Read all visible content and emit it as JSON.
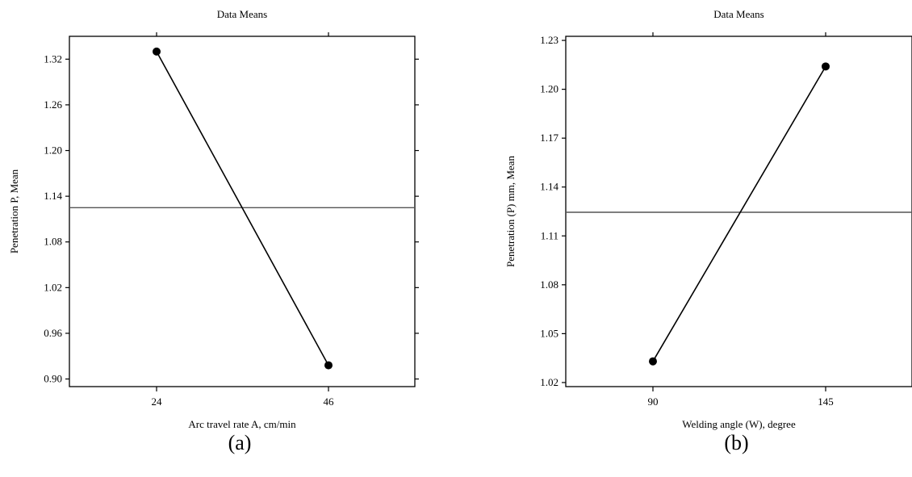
{
  "chart_data": [
    {
      "type": "line",
      "title": "Data Means",
      "xlabel": "Arc travel rate A, cm/min",
      "ylabel": "Penetration P, Mean",
      "caption": "(a)",
      "x": [
        "24",
        "46"
      ],
      "values": [
        1.33,
        0.918
      ],
      "mean_line": 1.125,
      "ylim": [
        0.89,
        1.35
      ],
      "yticks": [
        "0.90",
        "0.96",
        "1.02",
        "1.08",
        "1.14",
        "1.20",
        "1.26",
        "1.32"
      ],
      "grid": false
    },
    {
      "type": "line",
      "title": "Data Means",
      "xlabel": "Welding angle (W), degree",
      "ylabel": "Penetration (P) mm, Mean",
      "caption": "(b)",
      "x": [
        "90",
        "145"
      ],
      "values": [
        1.033,
        1.214
      ],
      "mean_line": 1.1245,
      "ylim": [
        1.0175,
        1.2325
      ],
      "yticks": [
        "1.02",
        "1.05",
        "1.08",
        "1.11",
        "1.14",
        "1.17",
        "1.20",
        "1.23"
      ],
      "grid": false
    }
  ]
}
